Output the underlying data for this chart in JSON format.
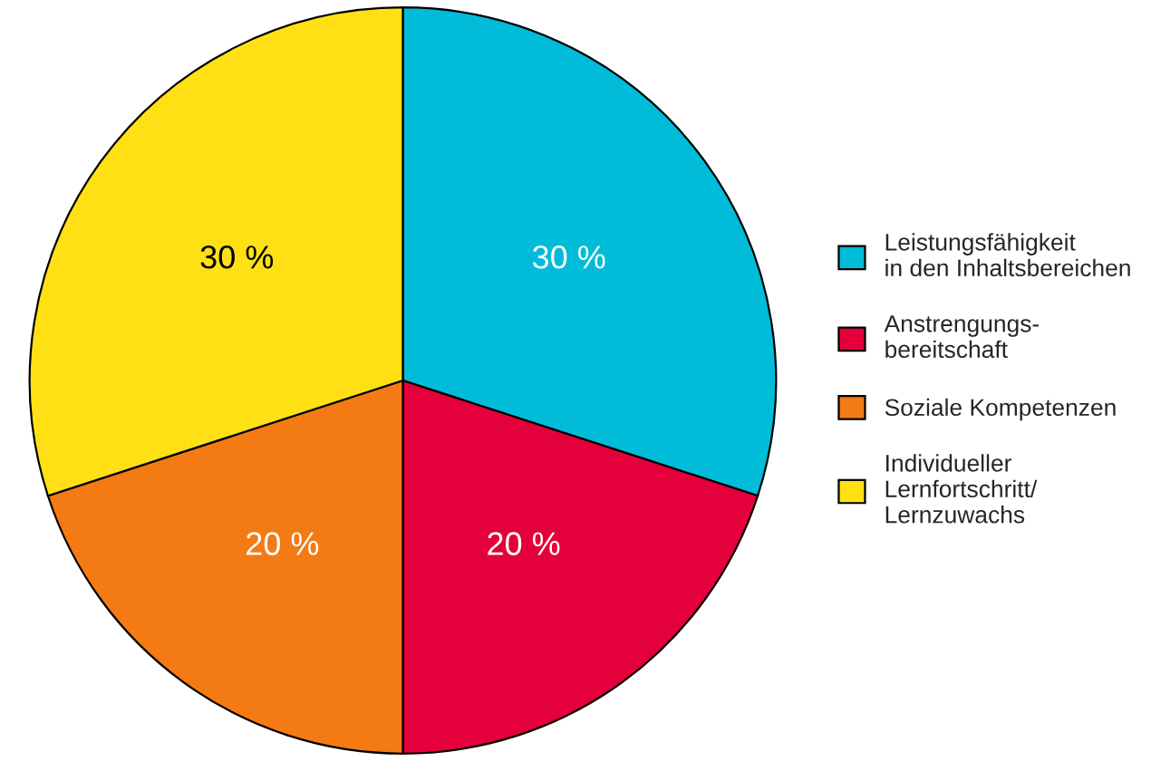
{
  "chart_data": {
    "type": "pie",
    "categories": [
      "Leistungsfähigkeit\nin den Inhaltsbereichen",
      "Anstrengungs-\nbereitschaft",
      "Soziale Kompetenzen",
      "Individueller\nLernfortschritt/\nLernzuwachs"
    ],
    "values": [
      30,
      20,
      20,
      30
    ],
    "value_labels": [
      "30 %",
      "20 %",
      "20 %",
      "30 %"
    ],
    "colors": [
      "#00bcd9",
      "#e4003a",
      "#f47a14",
      "#ffe014"
    ],
    "legend": "right"
  }
}
